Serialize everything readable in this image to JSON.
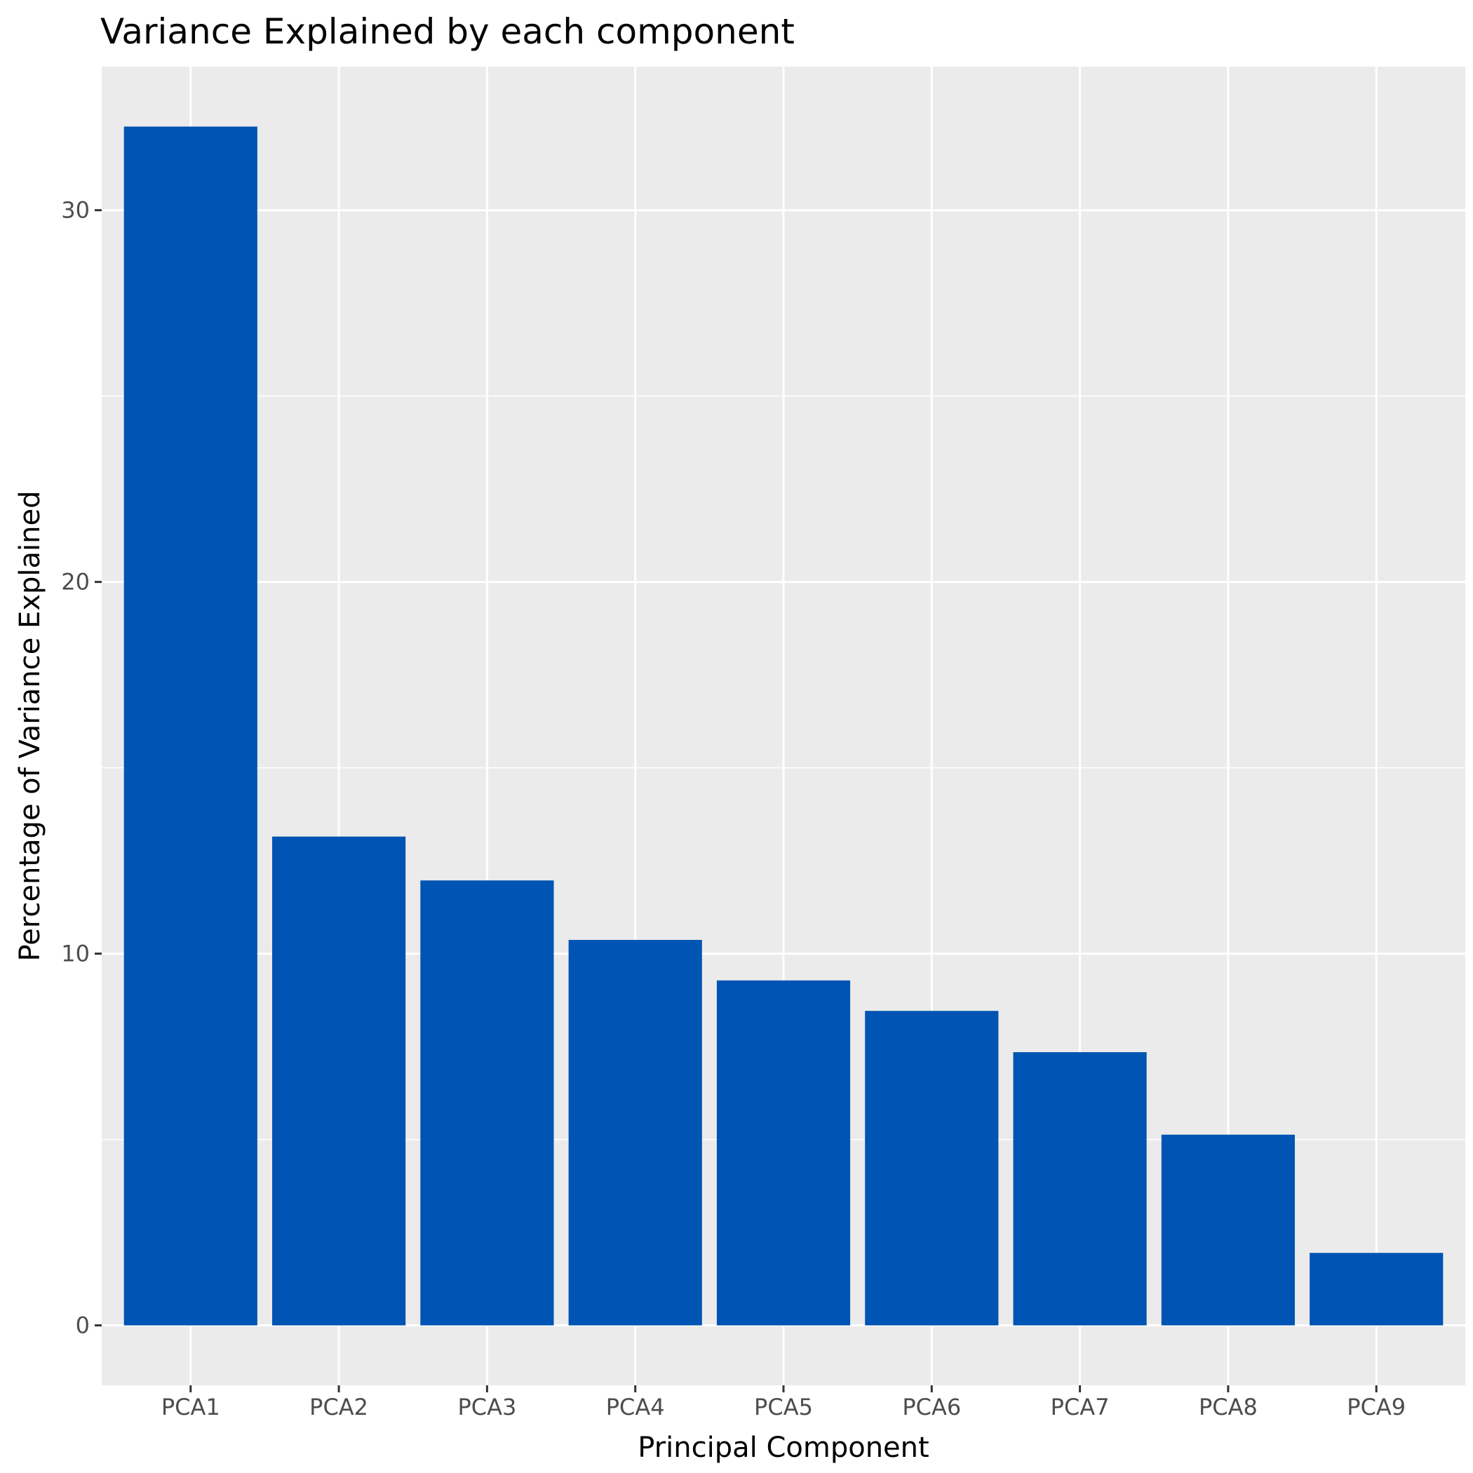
{
  "colors": {
    "panel_background": "#ebebeb",
    "grid_line": "#ffffff",
    "bar_fill": "#0054b3",
    "tick_mark": "#333333",
    "tick_text": "#4d4d4d"
  },
  "chart_data": {
    "type": "bar",
    "title": "Variance Explained by each component",
    "xlabel": "Principal Component",
    "ylabel": "Percentage of Variance Explained",
    "categories": [
      "PCA1",
      "PCA2",
      "PCA3",
      "PCA4",
      "PCA5",
      "PCA6",
      "PCA7",
      "PCA8",
      "PCA9"
    ],
    "values": [
      32.25,
      13.15,
      11.97,
      10.37,
      9.28,
      8.46,
      7.35,
      5.13,
      1.95
    ],
    "ylim": [
      -1.6125,
      33.8625
    ],
    "yticks": [
      0,
      10,
      20,
      30
    ],
    "ytick_labels": [
      "0",
      "10",
      "20",
      "30"
    ],
    "grid": true,
    "legend": "none"
  }
}
